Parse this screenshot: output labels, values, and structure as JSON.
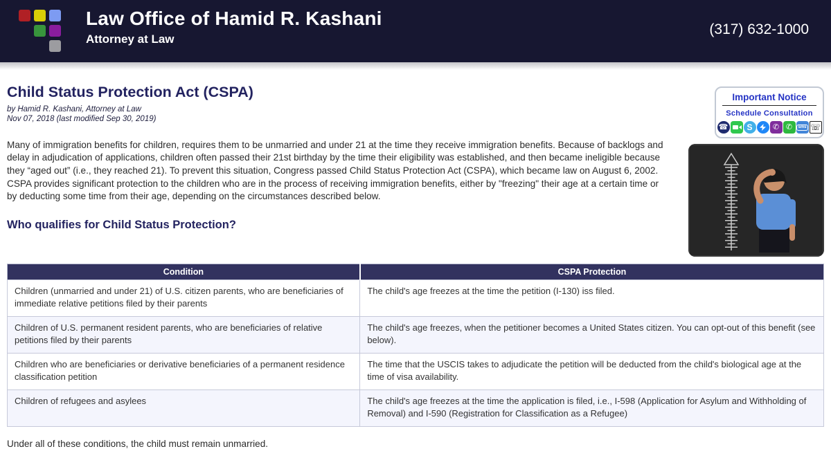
{
  "header": {
    "title": "Law Office of Hamid R. Kashani",
    "subtitle": "Attorney at Law",
    "phone": "(317) 632-1000",
    "logo_squares": [
      "#b02025",
      "#d8ce07",
      "#7d9bf2",
      null,
      "#38953c",
      "#8a1d9e",
      null,
      null,
      "#9c9ca0"
    ]
  },
  "notice_box": {
    "title": "Important Notice",
    "subtitle": "Schedule Consultation",
    "icons": [
      {
        "name": "phone-icon",
        "glyph": "☎"
      },
      {
        "name": "video-icon",
        "glyph": ""
      },
      {
        "name": "skype-icon",
        "glyph": "S"
      },
      {
        "name": "messenger-icon",
        "glyph": ""
      },
      {
        "name": "viber-icon",
        "glyph": "✆"
      },
      {
        "name": "whatsapp-icon",
        "glyph": "✆"
      },
      {
        "name": "sms-icon",
        "glyph": "sms"
      },
      {
        "name": "tty-icon",
        "glyph": "☏"
      }
    ]
  },
  "article": {
    "title": "Child Status Protection Act (CSPA)",
    "byline": "by Hamid R. Kashani, Attorney at Law",
    "dateline": "Nov 07, 2018 (last modified Sep 30, 2019)",
    "intro": "Many of immigration benefits for children, requires them to be unmarried and under 21 at the time they receive immigration benefits. Because of backlogs and delay in adjudication of applications, children often passed their 21st birthday by the time their eligibility was established, and then became ineligible because they “aged out” (i.e., they reached 21). To prevent this situation, Congress passed Child Status Protection Act (CSPA), which became law on August 6, 2002.  CSPA provides significant protection to the children who are in the process of receiving immigration benefits, either by \"freezing\" their age at a certain time or by deducting some time from their age, depending on the circumstances described below.",
    "section_heading": "Who qualifies for Child Status Protection?",
    "footer_note": "Under all of these conditions, the child must remain unmarried."
  },
  "table": {
    "headers": [
      "Condition",
      "CSPA Protection"
    ],
    "rows": [
      {
        "condition": "Children (unmarried and under 21) of U.S. citizen parents, who are beneficiaries of immediate relative petitions filed by their parents",
        "protection": "The child's age freezes at the time the petition (I-130) iss filed."
      },
      {
        "condition": "Children of U.S. permanent resident parents, who are beneficiaries of relative petitions filed by their parents",
        "protection": "The child's age freezes, when the petitioner becomes a United States citizen. You can opt-out of this benefit (see below)."
      },
      {
        "condition": "Children who are beneficiaries or derivative beneficiaries of a permanent residence classification petition",
        "protection": "The time that the USCIS takes to adjudicate the petition will be deducted from the child's biological age at the time of visa availability."
      },
      {
        "condition": "Children of refugees and asylees",
        "protection": "The child's age freezes at the time the application is filed, i.e., I-598 (Application for Asylum and Withholding of Removal) and I-590 (Registration for Classification as a Refugee)"
      }
    ]
  },
  "colors": {
    "header_bg": "#171731",
    "accent_navy": "#232360",
    "link_blue": "#2433c4",
    "table_header_bg": "#32325f",
    "table_row_alt": "#f4f5fd"
  }
}
